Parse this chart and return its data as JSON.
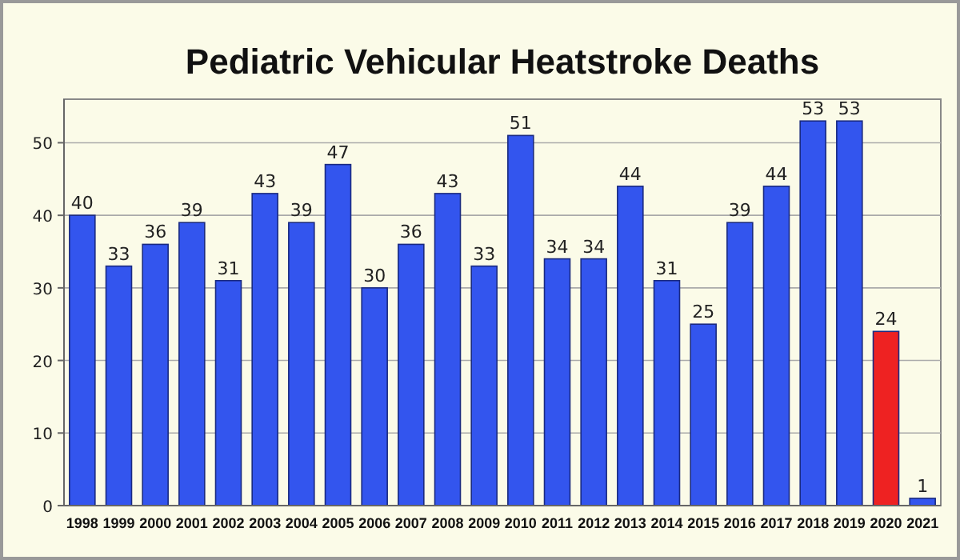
{
  "chart_data": {
    "type": "bar",
    "title": "Pediatric Vehicular Heatstroke Deaths",
    "categories": [
      "1998",
      "1999",
      "2000",
      "2001",
      "2002",
      "2003",
      "2004",
      "2005",
      "2006",
      "2007",
      "2008",
      "2009",
      "2010",
      "2011",
      "2012",
      "2013",
      "2014",
      "2015",
      "2016",
      "2017",
      "2018",
      "2019",
      "2020",
      "2021"
    ],
    "values": [
      40,
      33,
      36,
      39,
      31,
      43,
      39,
      47,
      30,
      36,
      43,
      33,
      51,
      34,
      34,
      44,
      31,
      25,
      39,
      44,
      53,
      53,
      24,
      1
    ],
    "colors": [
      "#3355ee",
      "#3355ee",
      "#3355ee",
      "#3355ee",
      "#3355ee",
      "#3355ee",
      "#3355ee",
      "#3355ee",
      "#3355ee",
      "#3355ee",
      "#3355ee",
      "#3355ee",
      "#3355ee",
      "#3355ee",
      "#3355ee",
      "#3355ee",
      "#3355ee",
      "#3355ee",
      "#3355ee",
      "#3355ee",
      "#3355ee",
      "#3355ee",
      "#ee2222",
      "#3355ee"
    ],
    "ylim": [
      0,
      56
    ],
    "yticks": [
      0,
      10,
      20,
      30,
      40,
      50
    ],
    "grid": "y",
    "data_labels": true
  }
}
